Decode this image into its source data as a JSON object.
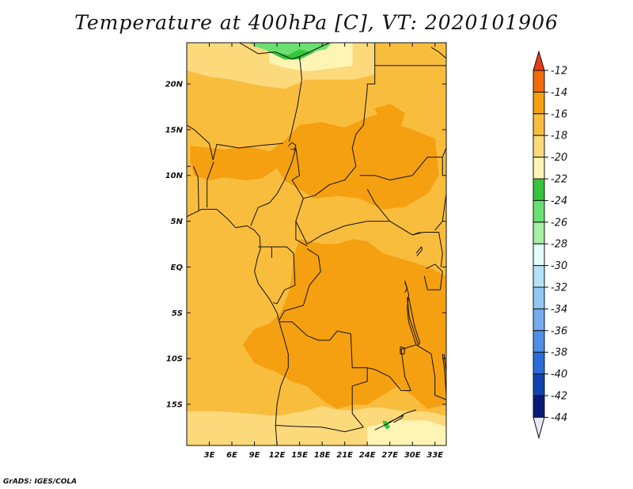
{
  "title": "Temperature at 400hPa [C], VT: 2020101906",
  "credit": "GrADS: IGES/COLA",
  "lat_ticks": [
    {
      "label": "20N",
      "value": 20
    },
    {
      "label": "15N",
      "value": 15
    },
    {
      "label": "10N",
      "value": 10
    },
    {
      "label": "5N",
      "value": 5
    },
    {
      "label": "EQ",
      "value": 0
    },
    {
      "label": "5S",
      "value": -5
    },
    {
      "label": "10S",
      "value": -10
    },
    {
      "label": "15S",
      "value": -15
    }
  ],
  "lon_ticks": [
    {
      "label": "3E",
      "value": 3
    },
    {
      "label": "6E",
      "value": 6
    },
    {
      "label": "9E",
      "value": 9
    },
    {
      "label": "12E",
      "value": 12
    },
    {
      "label": "15E",
      "value": 15
    },
    {
      "label": "18E",
      "value": 18
    },
    {
      "label": "21E",
      "value": 21
    },
    {
      "label": "24E",
      "value": 24
    },
    {
      "label": "27E",
      "value": 27
    },
    {
      "label": "30E",
      "value": 30
    },
    {
      "label": "33E",
      "value": 33
    }
  ],
  "colorbar": {
    "labels": [
      "-12",
      "-14",
      "-16",
      "-18",
      "-20",
      "-22",
      "-24",
      "-26",
      "-28",
      "-30",
      "-32",
      "-34",
      "-36",
      "-38",
      "-40",
      "-42",
      "-44"
    ],
    "colors": [
      "#e83c18",
      "#f06a0e",
      "#f5a010",
      "#f9bd3e",
      "#fcd97a",
      "#fef5b4",
      "#36c43c",
      "#6ae070",
      "#a8f0a6",
      "#e4fdfc",
      "#b4e2f8",
      "#94c8f4",
      "#74acef",
      "#4f8fe6",
      "#2c6cd8",
      "#1244b0",
      "#0a1a78"
    ],
    "top_color": "#e83c18",
    "bottom_color": "#e6e6f8"
  },
  "map": {
    "lon_range": [
      0,
      34.5
    ],
    "lat_range": [
      -19.5,
      24.5
    ],
    "background_color": "#f9bd3e",
    "colors": {
      "m14": "#f5a010",
      "m16": "#f9bd3e",
      "m18": "#fcd97a",
      "m20": "#fef5b4",
      "m22": "#36c43c",
      "m24": "#6ae070",
      "border": "#111111"
    }
  }
}
